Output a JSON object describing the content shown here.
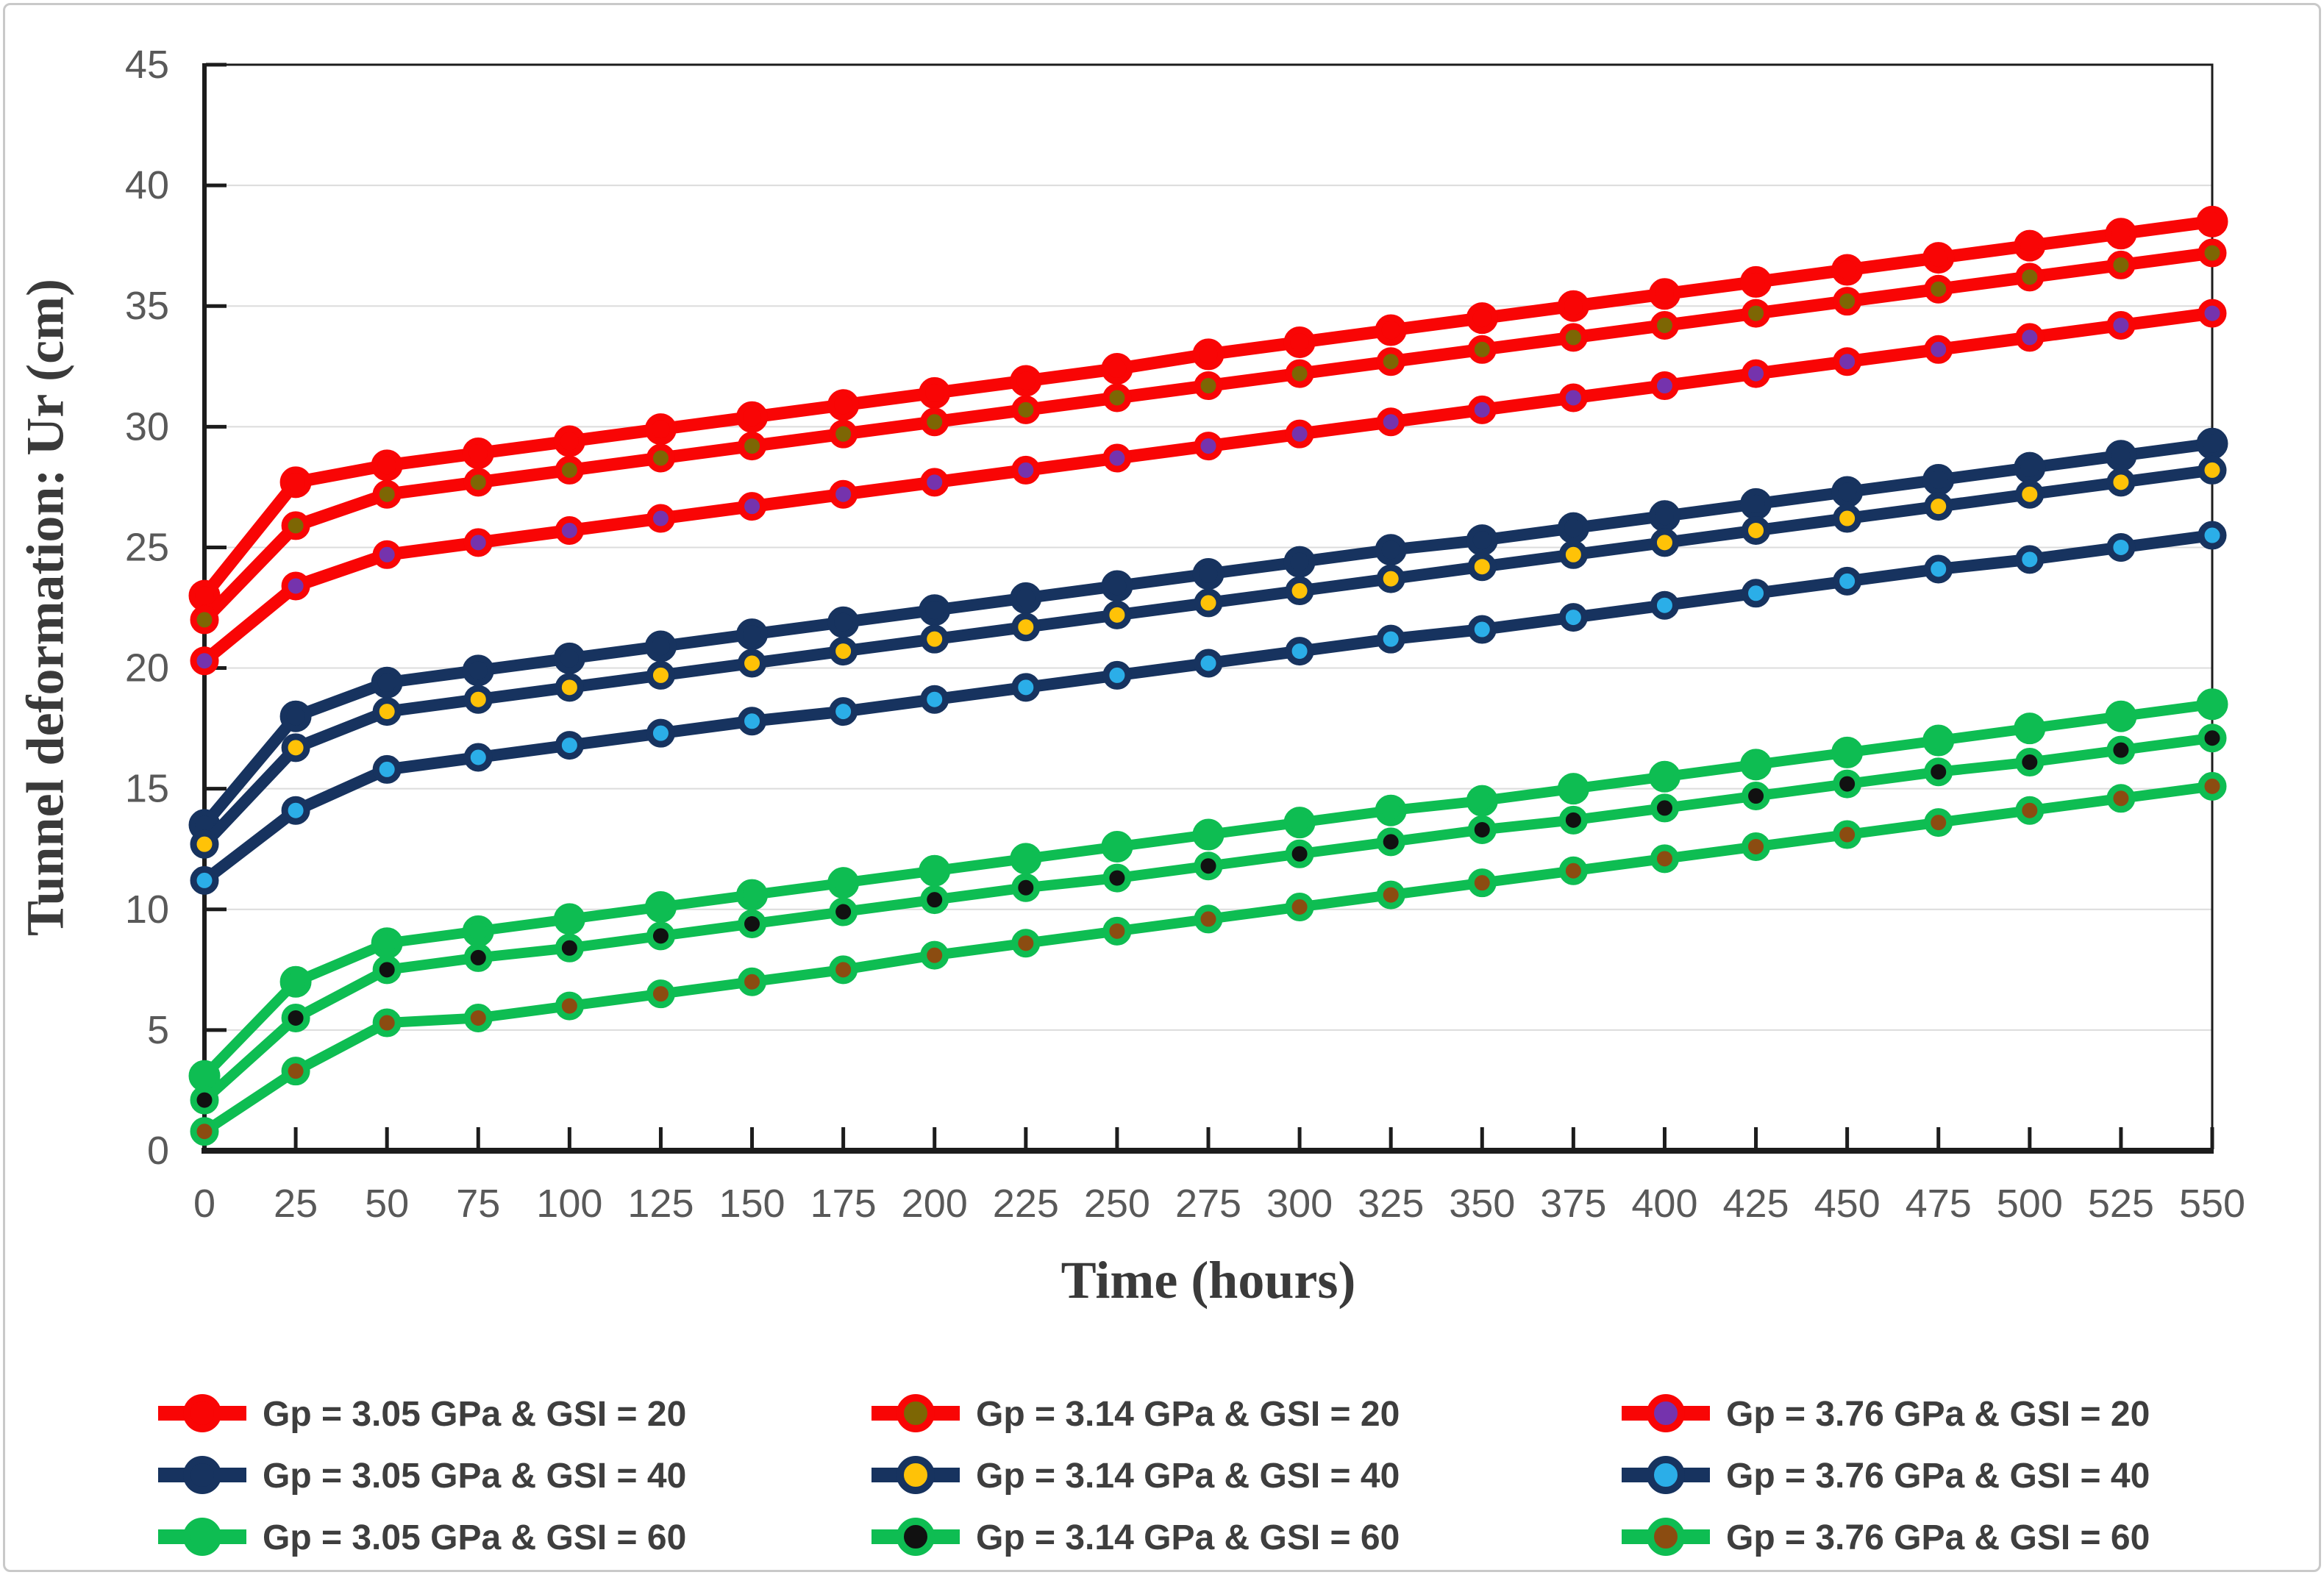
{
  "figure": {
    "x_axis_title": "Time (hours)",
    "y_axis_title": "Tunnel deformation: Ur (cm)"
  },
  "chart_data": {
    "type": "line",
    "title": "",
    "xlabel": "Time (hours)",
    "ylabel": "Tunnel deformation: Ur (cm)",
    "xlim": [
      0,
      550
    ],
    "ylim": [
      0,
      45
    ],
    "grid": "horizontal",
    "legend_position": "bottom",
    "x": [
      0,
      25,
      50,
      75,
      100,
      125,
      150,
      175,
      200,
      225,
      250,
      275,
      300,
      325,
      350,
      375,
      400,
      425,
      450,
      475,
      500,
      525,
      550
    ],
    "y_ticks": [
      0,
      5,
      10,
      15,
      20,
      25,
      30,
      35,
      40,
      45
    ],
    "colors": {
      "red": "#f90505",
      "navy": "#17335f",
      "green": "#0ebd52",
      "olive": "#7d6604",
      "purple": "#7533ad",
      "yellow": "#ffc207",
      "cyan": "#2baee8",
      "black": "#111111",
      "brown": "#8b4c11",
      "grid": "#dcdcdc",
      "spine": "#1c1c1c",
      "tick_label": "#595959",
      "axis_title": "#3a3a3a",
      "legend_text": "#3e3e3e",
      "border": "#c9c9c9"
    },
    "series": [
      {
        "label": "Gp = 3.05 GPa  &  GSI = 20",
        "gp": "3.05",
        "gsi": "20",
        "line_color": "red",
        "marker_color": "red",
        "values": [
          23.0,
          27.7,
          28.4,
          28.9,
          29.4,
          29.9,
          30.4,
          30.9,
          31.4,
          31.9,
          32.4,
          33.0,
          33.5,
          34.0,
          34.5,
          35.0,
          35.5,
          36.0,
          36.5,
          37.0,
          37.5,
          38.0,
          38.5
        ]
      },
      {
        "label": "Gp = 3.14 GPa  &  GSI = 20",
        "gp": "3.14",
        "gsi": "20",
        "line_color": "red",
        "marker_color": "olive",
        "values": [
          22.0,
          25.9,
          27.2,
          27.7,
          28.2,
          28.7,
          29.2,
          29.7,
          30.2,
          30.7,
          31.2,
          31.7,
          32.2,
          32.7,
          33.2,
          33.7,
          34.2,
          34.7,
          35.2,
          35.7,
          36.2,
          36.7,
          37.2
        ]
      },
      {
        "label": "Gp = 3.76 GPa  &  GSI = 20",
        "gp": "3.76",
        "gsi": "20",
        "line_color": "red",
        "marker_color": "purple",
        "values": [
          20.3,
          23.4,
          24.7,
          25.2,
          25.7,
          26.2,
          26.7,
          27.2,
          27.7,
          28.2,
          28.7,
          29.2,
          29.7,
          30.2,
          30.7,
          31.2,
          31.7,
          32.2,
          32.7,
          33.2,
          33.7,
          34.2,
          34.7
        ]
      },
      {
        "label": "Gp = 3.05 GPa  &  GSI = 40",
        "gp": "3.05",
        "gsi": "40",
        "line_color": "navy",
        "marker_color": "navy",
        "values": [
          13.5,
          18.0,
          19.4,
          19.9,
          20.4,
          20.9,
          21.4,
          21.9,
          22.4,
          22.9,
          23.4,
          23.9,
          24.4,
          24.9,
          25.3,
          25.8,
          26.3,
          26.8,
          27.3,
          27.8,
          28.3,
          28.8,
          29.3
        ]
      },
      {
        "label": "Gp = 3.14 GPa  &  GSI = 40",
        "gp": "3.14",
        "gsi": "40",
        "line_color": "navy",
        "marker_color": "yellow",
        "values": [
          12.7,
          16.7,
          18.2,
          18.7,
          19.2,
          19.7,
          20.2,
          20.7,
          21.2,
          21.7,
          22.2,
          22.7,
          23.2,
          23.7,
          24.2,
          24.7,
          25.2,
          25.7,
          26.2,
          26.7,
          27.2,
          27.7,
          28.2
        ]
      },
      {
        "label": "Gp = 3.76 GPa  &  GSI = 40",
        "gp": "3.76",
        "gsi": "40",
        "line_color": "navy",
        "marker_color": "cyan",
        "values": [
          11.2,
          14.1,
          15.8,
          16.3,
          16.8,
          17.3,
          17.8,
          18.2,
          18.7,
          19.2,
          19.7,
          20.2,
          20.7,
          21.2,
          21.6,
          22.1,
          22.6,
          23.1,
          23.6,
          24.1,
          24.5,
          25.0,
          25.5
        ]
      },
      {
        "label": "Gp = 3.05 GPa  &  GSI = 60",
        "gp": "3.05",
        "gsi": "60",
        "line_color": "green",
        "marker_color": "green",
        "values": [
          3.1,
          7.0,
          8.6,
          9.1,
          9.6,
          10.1,
          10.6,
          11.1,
          11.6,
          12.1,
          12.6,
          13.1,
          13.6,
          14.1,
          14.5,
          15.0,
          15.5,
          16.0,
          16.5,
          17.0,
          17.5,
          18.0,
          18.5
        ]
      },
      {
        "label": "Gp = 3.14 GPa  &  GSI = 60",
        "gp": "3.14",
        "gsi": "60",
        "line_color": "green",
        "marker_color": "black",
        "values": [
          2.1,
          5.5,
          7.5,
          8.0,
          8.4,
          8.9,
          9.4,
          9.9,
          10.4,
          10.9,
          11.3,
          11.8,
          12.3,
          12.8,
          13.3,
          13.7,
          14.2,
          14.7,
          15.2,
          15.7,
          16.1,
          16.6,
          17.1
        ]
      },
      {
        "label": "Gp = 3.76 GPa  &  GSI = 60",
        "gp": "3.76",
        "gsi": "60",
        "line_color": "green",
        "marker_color": "brown",
        "values": [
          0.8,
          3.3,
          5.3,
          5.5,
          6.0,
          6.5,
          7.0,
          7.5,
          8.1,
          8.6,
          9.1,
          9.6,
          10.1,
          10.6,
          11.1,
          11.6,
          12.1,
          12.6,
          13.1,
          13.6,
          14.1,
          14.6,
          15.1
        ]
      }
    ]
  }
}
